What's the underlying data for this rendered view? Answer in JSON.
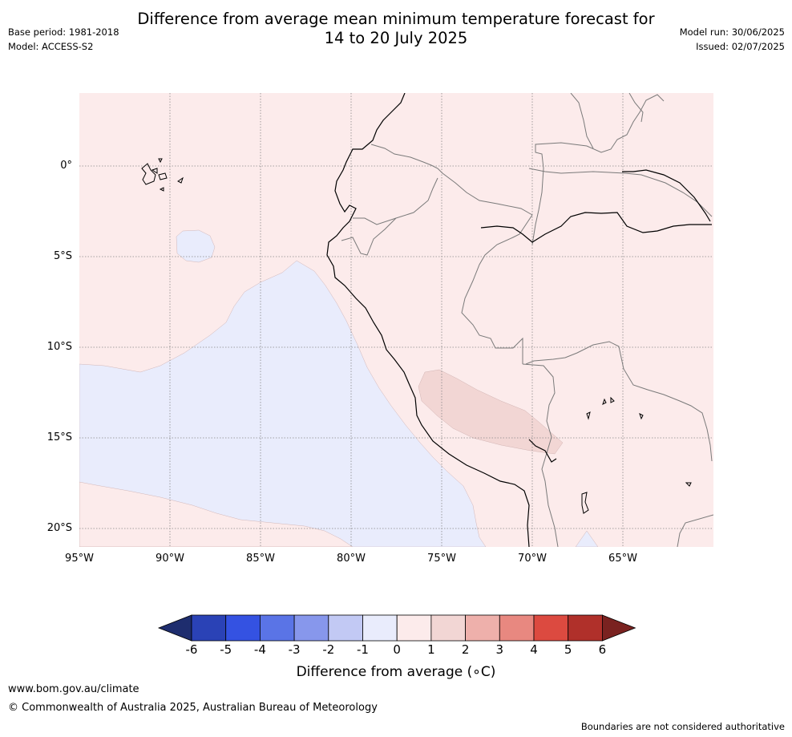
{
  "title_line1": "Difference from average mean minimum temperature forecast for",
  "title_line2": "14 to 20 July 2025",
  "base_period": "Base period: 1981-2018",
  "model": "Model: ACCESS-S2",
  "model_run": "Model run: 30/06/2025",
  "issued": "Issued: 02/07/2025",
  "lat_labels": [
    "0°",
    "5°S",
    "10°S",
    "15°S",
    "20°S"
  ],
  "lon_labels": [
    "95°W",
    "90°W",
    "85°W",
    "80°W",
    "75°W",
    "70°W",
    "65°W"
  ],
  "colorbar": {
    "title": "Difference from average (∘C)",
    "ticks": [
      "-6",
      "-5",
      "-4",
      "-3",
      "-2",
      "-1",
      "0",
      "1",
      "2",
      "3",
      "4",
      "5",
      "6"
    ],
    "colors": [
      "#1e2d6e",
      "#2a42b6",
      "#3452e2",
      "#5a74e6",
      "#8797ec",
      "#c2c9f4",
      "#e9ecfc",
      "#fcebeb",
      "#f2d6d4",
      "#eeb0ab",
      "#e88880",
      "#dc4a40",
      "#b0302a",
      "#7a2220"
    ]
  },
  "footer": {
    "url": "www.bom.gov.au/climate",
    "copyright": "© Commonwealth of Australia 2025, Australian Bureau of Meteorology",
    "disclaimer": "Boundaries are not considered authoritative"
  }
}
